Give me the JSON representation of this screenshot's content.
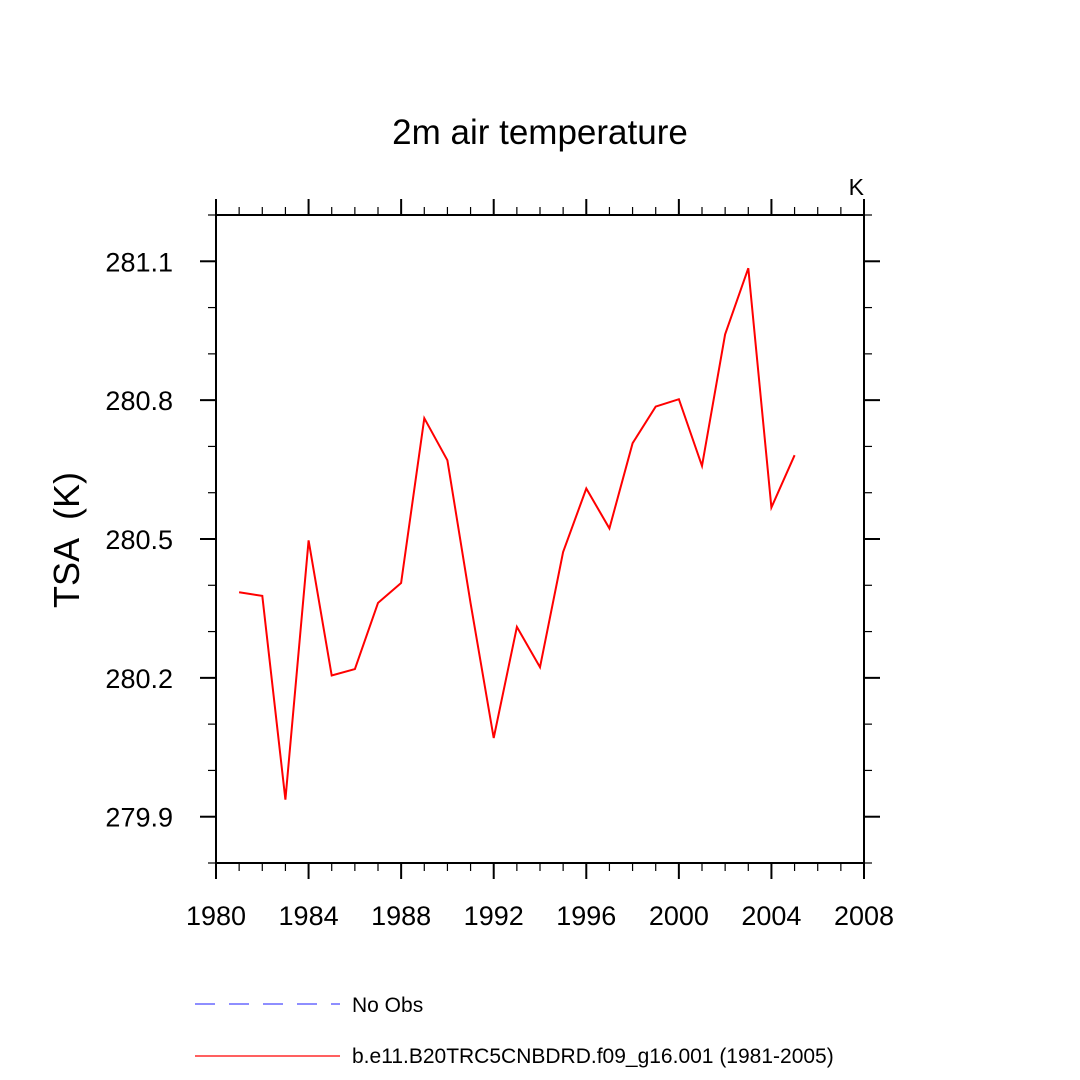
{
  "chart_data": {
    "type": "line",
    "title": "2m air temperature",
    "units_label": "K",
    "ylabel": "TSA  (K)",
    "xlabel": "",
    "xlim": [
      1980,
      2008
    ],
    "ylim": [
      279.8,
      281.2
    ],
    "x_ticks": [
      1980,
      1984,
      1988,
      1992,
      1996,
      2000,
      2004,
      2008
    ],
    "x_minor_step": 1,
    "y_ticks": [
      279.9,
      280.2,
      280.5,
      280.8,
      281.1
    ],
    "y_tick_labels": [
      "279.9",
      "280.2",
      "280.5",
      "280.8",
      "281.1"
    ],
    "y_minor_step": 0.1,
    "grid": false,
    "legend_position": "bottom",
    "series": [
      {
        "name": "No Obs",
        "color": "#4b4bff",
        "dash": "dashed",
        "x": [],
        "values": []
      },
      {
        "name": "b.e11.B20TRC5CNBDRD.f09_g16.001 (1981-2005)",
        "color": "#ff0000",
        "dash": "solid",
        "x": [
          1981,
          1982,
          1983,
          1984,
          1985,
          1986,
          1987,
          1988,
          1989,
          1990,
          1991,
          1992,
          1993,
          1994,
          1995,
          1996,
          1997,
          1998,
          1999,
          2000,
          2001,
          2002,
          2003,
          2004,
          2005
        ],
        "values": [
          280.385,
          280.377,
          279.937,
          280.497,
          280.205,
          280.219,
          280.362,
          280.405,
          280.761,
          280.67,
          280.361,
          280.07,
          280.31,
          280.223,
          280.472,
          280.609,
          280.523,
          280.707,
          280.786,
          280.802,
          280.658,
          280.942,
          281.085,
          280.568,
          280.681
        ]
      }
    ]
  }
}
